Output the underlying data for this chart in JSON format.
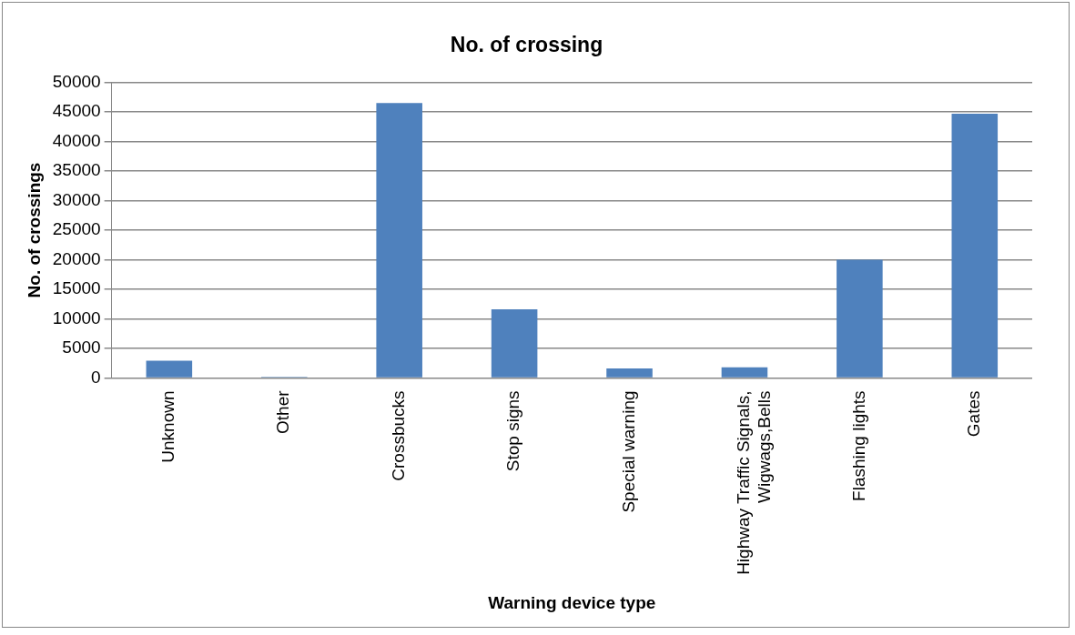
{
  "chart_data": {
    "type": "bar",
    "title": "No. of crossing",
    "xlabel": "Warning device type",
    "ylabel": "No. of crossings",
    "categories": [
      "Unknown",
      "Other",
      "Crossbucks",
      "Stop signs",
      "Special warning",
      "Highway Traffic Signals, Wigwags,Bells",
      "Flashing lights",
      "Gates"
    ],
    "values": [
      2900,
      200,
      46500,
      11600,
      1600,
      1800,
      20000,
      44700
    ],
    "color": "#4f81bd",
    "ylim": [
      0,
      50000
    ],
    "yticks": [
      0,
      5000,
      10000,
      15000,
      20000,
      25000,
      30000,
      35000,
      40000,
      45000,
      50000
    ],
    "grid": "y",
    "legend": false
  }
}
